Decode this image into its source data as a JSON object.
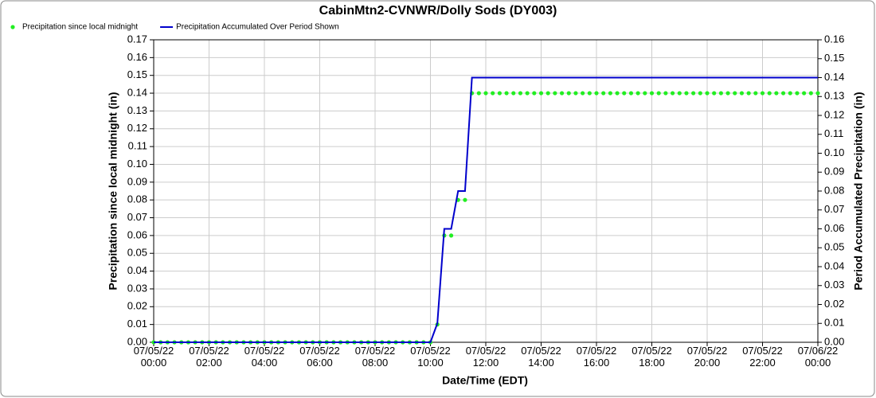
{
  "chart_data": {
    "type": "line",
    "title": "CabinMtn2-CVNWR/Dolly Sods (DY003)",
    "xlabel": "Date/Time (EDT)",
    "ylabel": "Precipitation since local midnight (in)",
    "y2label": "Period Accumulated Precipitation (in)",
    "x": [
      "07/05/22 00:00",
      "07/05/22 00:15",
      "07/05/22 00:30",
      "07/05/22 00:45",
      "07/05/22 01:00",
      "07/05/22 01:15",
      "07/05/22 01:30",
      "07/05/22 01:45",
      "07/05/22 02:00",
      "07/05/22 02:15",
      "07/05/22 02:30",
      "07/05/22 02:45",
      "07/05/22 03:00",
      "07/05/22 03:15",
      "07/05/22 03:30",
      "07/05/22 03:45",
      "07/05/22 04:00",
      "07/05/22 04:15",
      "07/05/22 04:30",
      "07/05/22 04:45",
      "07/05/22 05:00",
      "07/05/22 05:15",
      "07/05/22 05:30",
      "07/05/22 05:45",
      "07/05/22 06:00",
      "07/05/22 06:15",
      "07/05/22 06:30",
      "07/05/22 06:45",
      "07/05/22 07:00",
      "07/05/22 07:15",
      "07/05/22 07:30",
      "07/05/22 07:45",
      "07/05/22 08:00",
      "07/05/22 08:15",
      "07/05/22 08:30",
      "07/05/22 08:45",
      "07/05/22 09:00",
      "07/05/22 09:15",
      "07/05/22 09:30",
      "07/05/22 09:45",
      "07/05/22 10:00",
      "07/05/22 10:15",
      "07/05/22 10:30",
      "07/05/22 10:45",
      "07/05/22 11:00",
      "07/05/22 11:15",
      "07/05/22 11:30",
      "07/05/22 11:45",
      "07/05/22 12:00",
      "07/05/22 12:15",
      "07/05/22 12:30",
      "07/05/22 12:45",
      "07/05/22 13:00",
      "07/05/22 13:15",
      "07/05/22 13:30",
      "07/05/22 13:45",
      "07/05/22 14:00",
      "07/05/22 14:15",
      "07/05/22 14:30",
      "07/05/22 14:45",
      "07/05/22 15:00",
      "07/05/22 15:15",
      "07/05/22 15:30",
      "07/05/22 15:45",
      "07/05/22 16:00",
      "07/05/22 16:15",
      "07/05/22 16:30",
      "07/05/22 16:45",
      "07/05/22 17:00",
      "07/05/22 17:15",
      "07/05/22 17:30",
      "07/05/22 17:45",
      "07/05/22 18:00",
      "07/05/22 18:15",
      "07/05/22 18:30",
      "07/05/22 18:45",
      "07/05/22 19:00",
      "07/05/22 19:15",
      "07/05/22 19:30",
      "07/05/22 19:45",
      "07/05/22 20:00",
      "07/05/22 20:15",
      "07/05/22 20:30",
      "07/05/22 20:45",
      "07/05/22 21:00",
      "07/05/22 21:15",
      "07/05/22 21:30",
      "07/05/22 21:45",
      "07/05/22 22:00",
      "07/05/22 22:15",
      "07/05/22 22:30",
      "07/05/22 22:45",
      "07/05/22 23:00",
      "07/05/22 23:15",
      "07/05/22 23:30",
      "07/05/22 23:45",
      "07/06/22 00:00"
    ],
    "series": [
      {
        "name": "Precipitation since local midnight",
        "color": "#22ee22",
        "style": "dots",
        "values": [
          0,
          0,
          0,
          0,
          0,
          0,
          0,
          0,
          0,
          0,
          0,
          0,
          0,
          0,
          0,
          0,
          0,
          0,
          0,
          0,
          0,
          0,
          0,
          0,
          0,
          0,
          0,
          0,
          0,
          0,
          0,
          0,
          0,
          0,
          0,
          0,
          0,
          0,
          0,
          0,
          0,
          0.01,
          0.06,
          0.06,
          0.08,
          0.08,
          0.14,
          0.14,
          0.14,
          0.14,
          0.14,
          0.14,
          0.14,
          0.14,
          0.14,
          0.14,
          0.14,
          0.14,
          0.14,
          0.14,
          0.14,
          0.14,
          0.14,
          0.14,
          0.14,
          0.14,
          0.14,
          0.14,
          0.14,
          0.14,
          0.14,
          0.14,
          0.14,
          0.14,
          0.14,
          0.14,
          0.14,
          0.14,
          0.14,
          0.14,
          0.14,
          0.14,
          0.14,
          0.14,
          0.14,
          0.14,
          0.14,
          0.14,
          0.14,
          0.14,
          0.14,
          0.14,
          0.14,
          0.14,
          0.14,
          0.14,
          0.14
        ]
      },
      {
        "name": "Precipitation Accumulated Over Period Shown",
        "color": "#0000cc",
        "style": "line",
        "axis": "y2",
        "values": [
          0,
          0,
          0,
          0,
          0,
          0,
          0,
          0,
          0,
          0,
          0,
          0,
          0,
          0,
          0,
          0,
          0,
          0,
          0,
          0,
          0,
          0,
          0,
          0,
          0,
          0,
          0,
          0,
          0,
          0,
          0,
          0,
          0,
          0,
          0,
          0,
          0,
          0,
          0,
          0,
          0,
          0.01,
          0.06,
          0.06,
          0.08,
          0.08,
          0.14,
          0.14,
          0.14,
          0.14,
          0.14,
          0.14,
          0.14,
          0.14,
          0.14,
          0.14,
          0.14,
          0.14,
          0.14,
          0.14,
          0.14,
          0.14,
          0.14,
          0.14,
          0.14,
          0.14,
          0.14,
          0.14,
          0.14,
          0.14,
          0.14,
          0.14,
          0.14,
          0.14,
          0.14,
          0.14,
          0.14,
          0.14,
          0.14,
          0.14,
          0.14,
          0.14,
          0.14,
          0.14,
          0.14,
          0.14,
          0.14,
          0.14,
          0.14,
          0.14,
          0.14,
          0.14,
          0.14,
          0.14,
          0.14,
          0.14,
          0.14
        ]
      }
    ],
    "xlim": [
      "07/05/22 00:00",
      "07/06/22 00:00"
    ],
    "xticks": [
      "07/05/22 00:00",
      "07/05/22 02:00",
      "07/05/22 04:00",
      "07/05/22 06:00",
      "07/05/22 08:00",
      "07/05/22 10:00",
      "07/05/22 12:00",
      "07/05/22 14:00",
      "07/05/22 16:00",
      "07/05/22 18:00",
      "07/05/22 20:00",
      "07/05/22 22:00",
      "07/06/22 00:00"
    ],
    "ylim": [
      0,
      0.17
    ],
    "yticks": [
      {
        "value": 0,
        "label": "0.00"
      },
      {
        "value": 0.01,
        "label": "0.01"
      },
      {
        "value": 0.02,
        "label": "0.02"
      },
      {
        "value": 0.03,
        "label": "0.03"
      },
      {
        "value": 0.04,
        "label": "0.04"
      },
      {
        "value": 0.05,
        "label": "0.05"
      },
      {
        "value": 0.06,
        "label": "0.06"
      },
      {
        "value": 0.07,
        "label": "0.07"
      },
      {
        "value": 0.08,
        "label": "0.08"
      },
      {
        "value": 0.09,
        "label": "0.09"
      },
      {
        "value": 0.1,
        "label": "0.10"
      },
      {
        "value": 0.11,
        "label": "0.11"
      },
      {
        "value": 0.12,
        "label": "0.12"
      },
      {
        "value": 0.13,
        "label": "0.13"
      },
      {
        "value": 0.14,
        "label": "0.14"
      },
      {
        "value": 0.15,
        "label": "0.15"
      },
      {
        "value": 0.16,
        "label": "0.16"
      },
      {
        "value": 0.17,
        "label": "0.17"
      }
    ],
    "y2lim": [
      0,
      0.16
    ],
    "y2ticks": [
      {
        "value": 0,
        "label": "0.00"
      },
      {
        "value": 0.01,
        "label": "0.01"
      },
      {
        "value": 0.02,
        "label": "0.02"
      },
      {
        "value": 0.03,
        "label": "0.03"
      },
      {
        "value": 0.04,
        "label": "0.04"
      },
      {
        "value": 0.05,
        "label": "0.05"
      },
      {
        "value": 0.06,
        "label": "0.06"
      },
      {
        "value": 0.07,
        "label": "0.07"
      },
      {
        "value": 0.08,
        "label": "0.08"
      },
      {
        "value": 0.09,
        "label": "0.09"
      },
      {
        "value": 0.1,
        "label": "0.10"
      },
      {
        "value": 0.11,
        "label": "0.11"
      },
      {
        "value": 0.12,
        "label": "0.12"
      },
      {
        "value": 0.13,
        "label": "0.13"
      },
      {
        "value": 0.14,
        "label": "0.14"
      },
      {
        "value": 0.15,
        "label": "0.15"
      },
      {
        "value": 0.16,
        "label": "0.16"
      }
    ],
    "grid": true,
    "legend": "top-left"
  }
}
